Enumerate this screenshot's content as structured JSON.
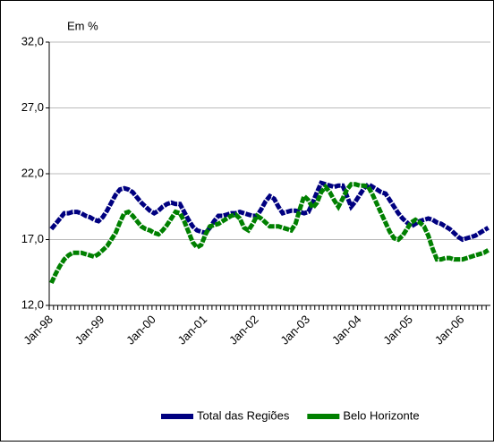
{
  "chart_data": {
    "type": "line",
    "ylabel": "Em %",
    "categories": [
      "Jan-98",
      null,
      null,
      null,
      null,
      null,
      null,
      null,
      null,
      null,
      null,
      null,
      "Jan-99",
      null,
      null,
      null,
      null,
      null,
      null,
      null,
      null,
      null,
      null,
      null,
      "Jan-00",
      null,
      null,
      null,
      null,
      null,
      null,
      null,
      null,
      null,
      null,
      null,
      "Jan-01",
      null,
      null,
      null,
      null,
      null,
      null,
      null,
      null,
      null,
      null,
      null,
      "Jan-02",
      null,
      null,
      null,
      null,
      null,
      null,
      null,
      null,
      null,
      null,
      null,
      "Jan-03",
      null,
      null,
      null,
      null,
      null,
      null,
      null,
      null,
      null,
      null,
      null,
      "Jan-04",
      null,
      null,
      null,
      null,
      null,
      null,
      null,
      null,
      null,
      null,
      null,
      "Jan-05",
      null,
      null,
      null,
      null,
      null,
      null,
      null,
      null,
      null,
      null,
      null,
      "Jan-06",
      null,
      null,
      null,
      null,
      null,
      null
    ],
    "series": [
      {
        "name": "Total das Regiões",
        "color": "#000080",
        "values": [
          17.8,
          18.2,
          18.6,
          19.0,
          19.0,
          19.1,
          19.1,
          19.0,
          18.8,
          18.7,
          18.5,
          18.4,
          18.7,
          19.2,
          19.8,
          20.4,
          20.8,
          20.9,
          20.8,
          20.6,
          20.2,
          19.8,
          19.5,
          19.2,
          19.0,
          19.2,
          19.5,
          19.7,
          19.8,
          19.7,
          19.7,
          19.1,
          18.5,
          18.0,
          17.7,
          17.6,
          17.5,
          17.9,
          18.4,
          18.8,
          18.8,
          18.9,
          19.0,
          19.0,
          19.1,
          19.0,
          18.9,
          18.8,
          18.8,
          19.3,
          19.9,
          20.3,
          20.1,
          19.5,
          19.0,
          19.1,
          19.2,
          19.2,
          19.1,
          19.0,
          19.1,
          19.8,
          20.6,
          21.3,
          21.2,
          21.1,
          21.0,
          21.1,
          21.1,
          20.3,
          19.5,
          19.9,
          20.4,
          20.9,
          21.2,
          21.0,
          20.8,
          20.6,
          20.5,
          20.0,
          19.5,
          19.0,
          18.6,
          18.3,
          18.0,
          18.2,
          18.4,
          18.5,
          18.6,
          18.5,
          18.3,
          18.2,
          18.0,
          17.8,
          17.5,
          17.2,
          17.0,
          17.1,
          17.2,
          17.3,
          17.5,
          17.7,
          17.9
        ]
      },
      {
        "name": "Belo Horizonte",
        "color": "#008000",
        "values": [
          13.7,
          14.4,
          15.0,
          15.5,
          15.8,
          16.0,
          16.0,
          16.0,
          15.9,
          15.8,
          15.7,
          15.9,
          16.2,
          16.5,
          17.0,
          17.5,
          18.3,
          19.0,
          19.1,
          18.8,
          18.4,
          18.0,
          17.8,
          17.7,
          17.5,
          17.4,
          17.7,
          18.1,
          18.6,
          19.1,
          19.0,
          18.4,
          17.6,
          16.8,
          16.4,
          16.6,
          17.4,
          18.0,
          18.1,
          18.2,
          18.4,
          18.6,
          18.8,
          18.9,
          18.6,
          17.9,
          17.7,
          18.2,
          18.8,
          18.6,
          18.3,
          18.0,
          18.0,
          18.0,
          17.9,
          17.8,
          17.7,
          18.2,
          19.3,
          20.3,
          20.0,
          19.4,
          19.8,
          20.6,
          21.0,
          20.6,
          20.0,
          19.5,
          20.1,
          20.8,
          21.2,
          21.2,
          21.1,
          21.1,
          21.0,
          20.4,
          19.7,
          19.0,
          18.3,
          17.6,
          17.1,
          17.0,
          17.3,
          17.8,
          18.3,
          18.5,
          18.3,
          18.0,
          17.3,
          16.3,
          15.5,
          15.5,
          15.6,
          15.6,
          15.5,
          15.5,
          15.5,
          15.6,
          15.7,
          15.8,
          15.9,
          16.0,
          16.2
        ]
      }
    ],
    "ylim": [
      12,
      32
    ],
    "yticks": [
      {
        "value": 12,
        "label": "12,0"
      },
      {
        "value": 17,
        "label": "17,0"
      },
      {
        "value": 22,
        "label": "22,0"
      },
      {
        "value": 27,
        "label": "27,0"
      },
      {
        "value": 32,
        "label": "32,0"
      }
    ],
    "grid": true,
    "legend": "bottom"
  }
}
